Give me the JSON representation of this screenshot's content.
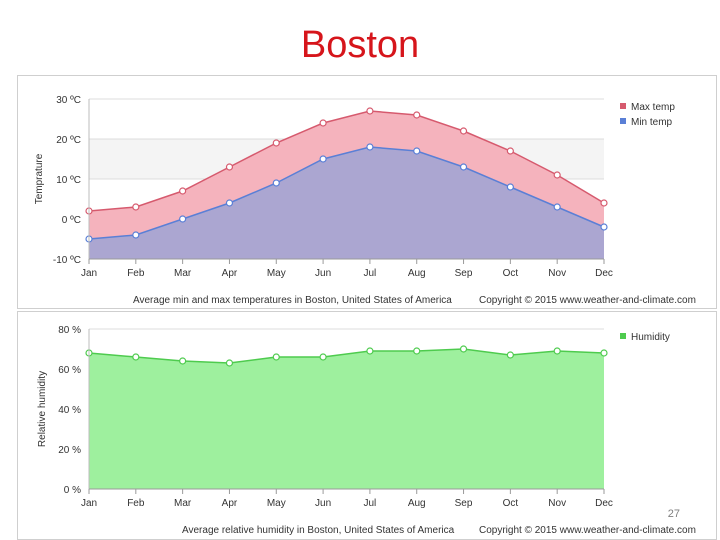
{
  "slide": {
    "title": "Boston",
    "page_number": "27"
  },
  "colors": {
    "title": "#d6151b",
    "max_line": "#d65a6e",
    "max_fill": "#f5b3bd",
    "min_line": "#5a7fd6",
    "min_fill": "#aba6d1",
    "humidity_line": "#4ecb4e",
    "humidity_fill": "#9ef09e",
    "grid": "#dcdcdc",
    "band": "#f4f4f4"
  },
  "chart_data": [
    {
      "type": "area",
      "ylabel": "Temprature",
      "caption": "Average min and max temperatures in Boston, United States of America",
      "copyright": "Copyright © 2015 www.weather-and-climate.com",
      "categories": [
        "Jan",
        "Feb",
        "Mar",
        "Apr",
        "May",
        "Jun",
        "Jul",
        "Aug",
        "Sep",
        "Oct",
        "Nov",
        "Dec"
      ],
      "yticks": [
        "30 ºC",
        "20 ºC",
        "10 ºC",
        "0 ºC",
        "-10 ºC"
      ],
      "ytick_values": [
        30,
        20,
        10,
        0,
        -10
      ],
      "ylim": [
        -10,
        30
      ],
      "legend_position": "top-right",
      "series": [
        {
          "name": "Max temp",
          "values": [
            2,
            3,
            7,
            13,
            19,
            24,
            27,
            26,
            22,
            17,
            11,
            4
          ]
        },
        {
          "name": "Min temp",
          "values": [
            -5,
            -4,
            0,
            4,
            9,
            15,
            18,
            17,
            13,
            8,
            3,
            -2
          ]
        }
      ]
    },
    {
      "type": "area",
      "ylabel": "Relative humidity",
      "caption": "Average relative humidity in Boston, United States of America",
      "copyright": "Copyright © 2015 www.weather-and-climate.com",
      "categories": [
        "Jan",
        "Feb",
        "Mar",
        "Apr",
        "May",
        "Jun",
        "Jul",
        "Aug",
        "Sep",
        "Oct",
        "Nov",
        "Dec"
      ],
      "yticks": [
        "80 %",
        "60 %",
        "40 %",
        "20 %",
        "0 %"
      ],
      "ytick_values": [
        80,
        60,
        40,
        20,
        0
      ],
      "ylim": [
        0,
        80
      ],
      "legend_position": "top-right",
      "series": [
        {
          "name": "Humidity",
          "values": [
            68,
            66,
            64,
            63,
            66,
            66,
            69,
            69,
            70,
            67,
            69,
            68
          ]
        }
      ]
    }
  ]
}
